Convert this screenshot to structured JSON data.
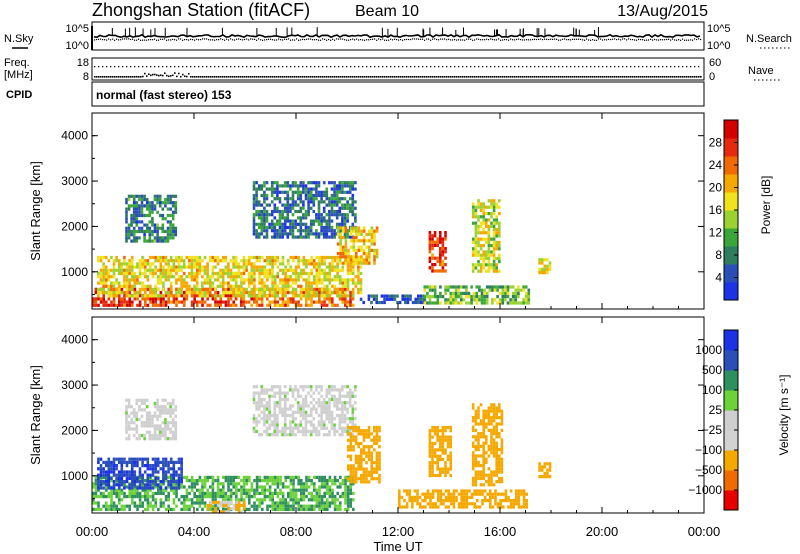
{
  "header": {
    "station": "Zhongshan Station (fitACF)",
    "beam": "Beam 10",
    "date": "13/Aug/2015"
  },
  "strip_labels": {
    "nsky": "N.Sky",
    "nsky_top": "10^5",
    "nsky_bottom": "10^0",
    "nsearch": "N.Search",
    "nsearch_top": "10^5",
    "nsearch_bottom": "10^0",
    "freq_line1": "Freq.",
    "freq_line2": "[MHz]",
    "freq_top": "18",
    "freq_bottom": "8",
    "nave": "Nave",
    "nave_top": "60",
    "nave_bottom": "0",
    "cpid": "CPID",
    "cpid_text": "normal (fast stereo) 153"
  },
  "colors": {
    "power_scale": [
      "#1c32e6",
      "#2a4fb8",
      "#2f7d5f",
      "#3aa63a",
      "#9bd230",
      "#f2e21d",
      "#f5a800",
      "#f06a00",
      "#e62a10",
      "#d40000"
    ],
    "velocity_scale": [
      "#e60000",
      "#f06a00",
      "#f5a800",
      "#d2d2d2",
      "#cfcfcf",
      "#6bd23a",
      "#2f8f5f",
      "#2a4fb8",
      "#1c32e6"
    ]
  },
  "chart_data": [
    {
      "type": "heatmap",
      "title": "",
      "xlabel": "",
      "ylabel": "Slant Range [km]",
      "xlim": [
        0,
        24
      ],
      "ylim": [
        180,
        4500
      ],
      "x_tick_labels": [
        "00:00",
        "04:00",
        "08:00",
        "12:00",
        "16:00",
        "20:00",
        "00:00"
      ],
      "y_ticks": [
        1000,
        2000,
        3000,
        4000
      ],
      "colorbar_label": "Power [dB]",
      "colorbar_ticks": [
        4,
        8,
        12,
        16,
        20,
        24,
        28
      ],
      "colorbar_range": [
        0,
        32
      ],
      "regions": [
        {
          "t0": 0.0,
          "t1": 5.6,
          "r0": 250,
          "r1": 650,
          "v": 27
        },
        {
          "t0": 5.6,
          "t1": 10.2,
          "r0": 250,
          "r1": 650,
          "v": 24
        },
        {
          "t0": 0.2,
          "t1": 10.5,
          "r0": 500,
          "r1": 1350,
          "v": 18
        },
        {
          "t0": 1.3,
          "t1": 3.3,
          "r0": 1700,
          "r1": 2700,
          "v": 8
        },
        {
          "t0": 6.3,
          "t1": 10.3,
          "r0": 1800,
          "r1": 3000,
          "v": 7
        },
        {
          "t0": 9.6,
          "t1": 11.2,
          "r0": 1200,
          "r1": 2000,
          "v": 19
        },
        {
          "t0": 10.5,
          "t1": 13.0,
          "r0": 300,
          "r1": 500,
          "v": 4
        },
        {
          "t0": 13.0,
          "t1": 17.1,
          "r0": 300,
          "r1": 700,
          "v": 12
        },
        {
          "t0": 13.2,
          "t1": 13.9,
          "r0": 1000,
          "r1": 1900,
          "v": 27
        },
        {
          "t0": 14.9,
          "t1": 16.0,
          "r0": 1000,
          "r1": 2600,
          "v": 16
        },
        {
          "t0": 17.5,
          "t1": 18.0,
          "r0": 1000,
          "r1": 1300,
          "v": 18
        }
      ]
    },
    {
      "type": "heatmap",
      "title": "",
      "xlabel": "Time UT",
      "ylabel": "Slant Range [km]",
      "xlim": [
        0,
        24
      ],
      "ylim": [
        180,
        4500
      ],
      "x_tick_labels": [
        "00:00",
        "04:00",
        "08:00",
        "12:00",
        "16:00",
        "20:00",
        "00:00"
      ],
      "y_ticks": [
        1000,
        2000,
        3000,
        4000
      ],
      "colorbar_label": "Velocity [m s⁻¹]",
      "colorbar_ticks": [
        "1000",
        "500",
        "100",
        "25",
        "−25",
        "−100",
        "−500",
        "−1000"
      ],
      "regions": [
        {
          "t0": 0.0,
          "t1": 10.2,
          "r0": 250,
          "r1": 1000,
          "v": 100
        },
        {
          "t0": 0.2,
          "t1": 3.5,
          "r0": 700,
          "r1": 1400,
          "v": 900
        },
        {
          "t0": 1.3,
          "t1": 3.3,
          "r0": 1800,
          "r1": 2700,
          "v": 0
        },
        {
          "t0": 6.3,
          "t1": 10.3,
          "r0": 1900,
          "r1": 3000,
          "v": 0
        },
        {
          "t0": 4.5,
          "t1": 6.0,
          "r0": 200,
          "r1": 450,
          "v": -100
        },
        {
          "t0": 10.0,
          "t1": 11.3,
          "r0": 900,
          "r1": 2100,
          "v": -300
        },
        {
          "t0": 12.0,
          "t1": 17.0,
          "r0": 280,
          "r1": 700,
          "v": -200
        },
        {
          "t0": 13.2,
          "t1": 14.1,
          "r0": 1000,
          "r1": 2100,
          "v": -300
        },
        {
          "t0": 14.9,
          "t1": 16.1,
          "r0": 800,
          "r1": 2600,
          "v": -300
        },
        {
          "t0": 17.5,
          "t1": 18.0,
          "r0": 1000,
          "r1": 1300,
          "v": -200
        }
      ]
    }
  ]
}
